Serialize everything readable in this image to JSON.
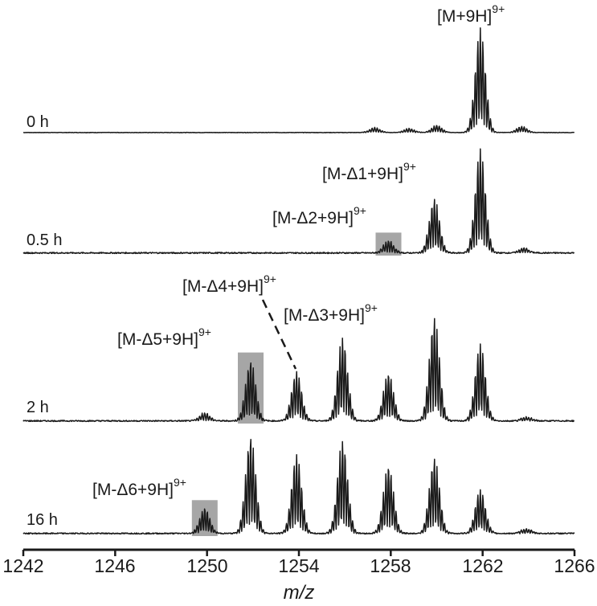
{
  "chart_data": {
    "type": "line",
    "title": "",
    "xlabel": "m/z",
    "ylabel": "",
    "xlim": [
      1242,
      1266
    ],
    "x_ticks": [
      1242,
      1246,
      1250,
      1254,
      1258,
      1262,
      1266
    ],
    "grid": false,
    "legend": null,
    "description": "Stacked ESI mass spectra (9+ charge state) at four time points showing progressive truncation products",
    "series": [
      {
        "name": "0 h",
        "peaks": [
          {
            "mz": 1257.3,
            "rel_intensity": 0.05
          },
          {
            "mz": 1258.8,
            "rel_intensity": 0.04
          },
          {
            "mz": 1260.0,
            "rel_intensity": 0.07
          },
          {
            "mz": 1261.9,
            "rel_intensity": 1.0,
            "label": "[M+9H]9+"
          },
          {
            "mz": 1263.7,
            "rel_intensity": 0.06
          }
        ]
      },
      {
        "name": "0.5 h",
        "peaks": [
          {
            "mz": 1257.9,
            "rel_intensity": 0.12,
            "label": "[M-Δ2+9H]9+",
            "highlighted": true
          },
          {
            "mz": 1259.9,
            "rel_intensity": 0.52,
            "label": "[M-Δ1+9H]9+"
          },
          {
            "mz": 1261.9,
            "rel_intensity": 1.0
          },
          {
            "mz": 1263.8,
            "rel_intensity": 0.05
          }
        ]
      },
      {
        "name": "2 h",
        "peaks": [
          {
            "mz": 1249.9,
            "rel_intensity": 0.08
          },
          {
            "mz": 1251.9,
            "rel_intensity": 0.58,
            "label": "[M-Δ5+9H]9+",
            "highlighted": true
          },
          {
            "mz": 1253.9,
            "rel_intensity": 0.47,
            "label": "[M-Δ4+9H]9+"
          },
          {
            "mz": 1255.9,
            "rel_intensity": 0.8,
            "label": "[M-Δ3+9H]9+"
          },
          {
            "mz": 1257.9,
            "rel_intensity": 0.46
          },
          {
            "mz": 1259.9,
            "rel_intensity": 1.0
          },
          {
            "mz": 1261.9,
            "rel_intensity": 0.74
          },
          {
            "mz": 1263.9,
            "rel_intensity": 0.04
          }
        ]
      },
      {
        "name": "16 h",
        "peaks": [
          {
            "mz": 1249.9,
            "rel_intensity": 0.26,
            "label": "[M-Δ6+9H]9+",
            "highlighted": true
          },
          {
            "mz": 1251.9,
            "rel_intensity": 1.0
          },
          {
            "mz": 1253.9,
            "rel_intensity": 0.8
          },
          {
            "mz": 1255.9,
            "rel_intensity": 0.95
          },
          {
            "mz": 1257.9,
            "rel_intensity": 0.7
          },
          {
            "mz": 1259.9,
            "rel_intensity": 0.77
          },
          {
            "mz": 1261.9,
            "rel_intensity": 0.45
          },
          {
            "mz": 1263.9,
            "rel_intensity": 0.05
          }
        ]
      }
    ],
    "annotations": [
      {
        "text": "[M+9H]",
        "sup": "9+",
        "trace": "0 h"
      },
      {
        "text": "[M-Δ1+9H]",
        "sup": "9+",
        "trace": "0.5 h"
      },
      {
        "text": "[M-Δ2+9H]",
        "sup": "9+",
        "trace": "0.5 h"
      },
      {
        "text": "[M-Δ4+9H]",
        "sup": "9+",
        "trace": "2 h",
        "leader": "dashed"
      },
      {
        "text": "[M-Δ3+9H]",
        "sup": "9+",
        "trace": "2 h"
      },
      {
        "text": "[M-Δ5+9H]",
        "sup": "9+",
        "trace": "2 h"
      },
      {
        "text": "[M-Δ6+9H]",
        "sup": "9+",
        "trace": "16 h"
      }
    ]
  },
  "labels": {
    "trace_0h": "0 h",
    "trace_05h": "0.5 h",
    "trace_2h": "2 h",
    "trace_16h": "16 h",
    "ann_m9h": "[M+9H]",
    "ann_d1": "[M-Δ1+9H]",
    "ann_d2": "[M-Δ2+9H]",
    "ann_d3": "[M-Δ3+9H]",
    "ann_d4": "[M-Δ4+9H]",
    "ann_d5": "[M-Δ5+9H]",
    "ann_d6": "[M-Δ6+9H]",
    "charge": "9+"
  },
  "axis": {
    "ticks": [
      "1242",
      "1246",
      "1250",
      "1254",
      "1258",
      "1262",
      "1266"
    ],
    "xlabel": "m/z"
  },
  "colors": {
    "trace": "#1a1a1a",
    "highlight": "#a6a6a6",
    "axis": "#1a1a1a"
  }
}
